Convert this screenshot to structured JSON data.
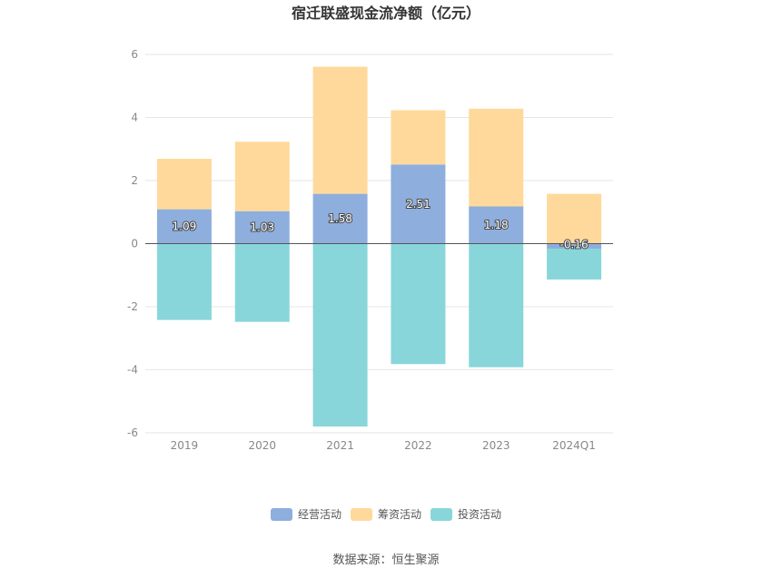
{
  "chart_data": {
    "type": "bar",
    "stacked": true,
    "title": "宿迁联盛现金流净额（亿元）",
    "categories": [
      "2019",
      "2020",
      "2021",
      "2022",
      "2023",
      "2024Q1"
    ],
    "ylim": [
      -6,
      6
    ],
    "yticks": [
      "6",
      "4",
      "2",
      "0",
      "-2",
      "-4",
      "-6"
    ],
    "grid": true,
    "legend_position": "bottom",
    "series": [
      {
        "name": "经营活动",
        "color": "#8eaedd",
        "values": [
          1.09,
          1.03,
          1.58,
          2.51,
          1.18,
          -0.16
        ],
        "labels": [
          "1.09",
          "1.03",
          "1.58",
          "2.51",
          "1.18",
          "-0.16"
        ]
      },
      {
        "name": "筹资活动",
        "color": "#ffd99b",
        "values": [
          1.6,
          2.2,
          4.03,
          1.72,
          3.1,
          1.58
        ]
      },
      {
        "name": "投资活动",
        "color": "#88d6d9",
        "values": [
          -2.42,
          -2.48,
          -5.8,
          -3.82,
          -3.92,
          -0.98
        ]
      }
    ]
  },
  "source": "数据来源：恒生聚源"
}
